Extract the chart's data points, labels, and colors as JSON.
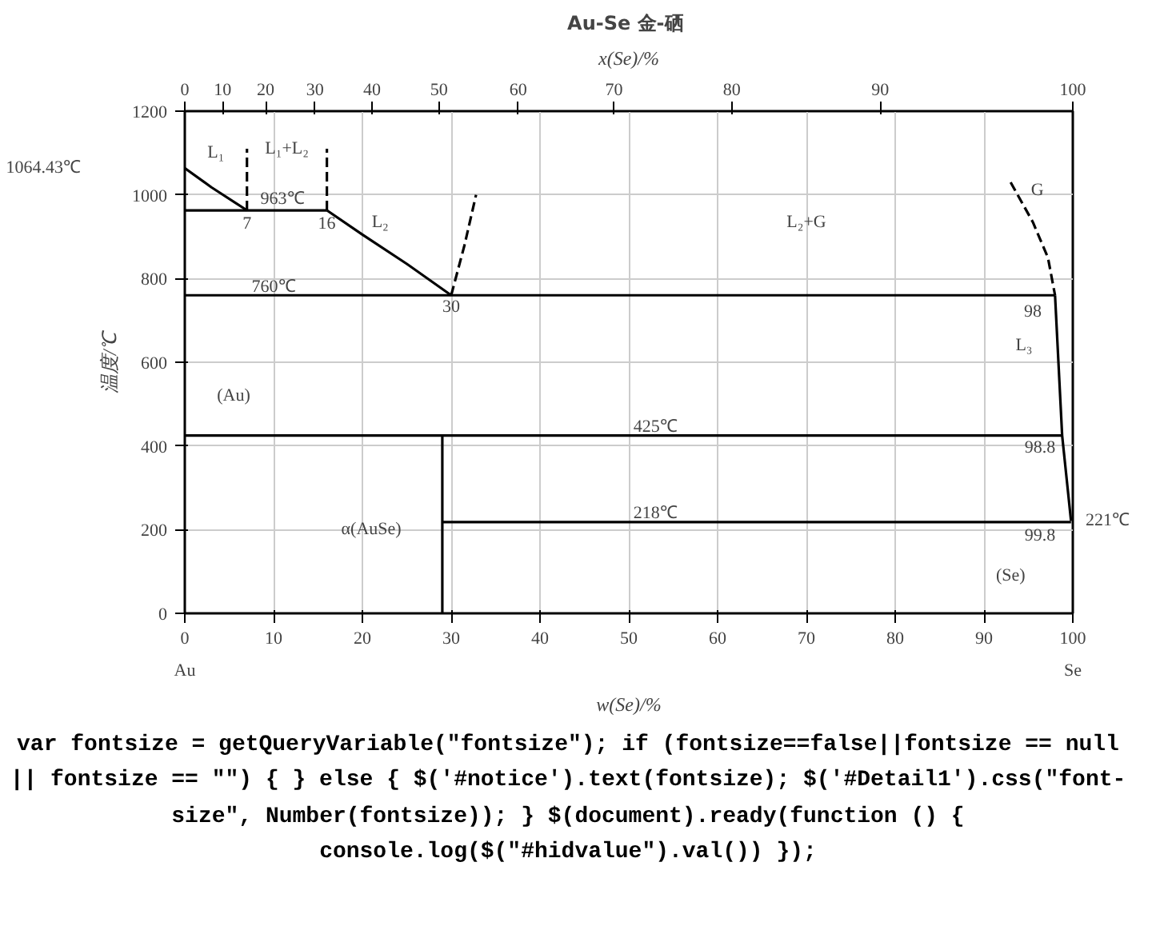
{
  "chart_data": {
    "type": "line",
    "title": "Au-Se  金-硒",
    "xlabel": "w(Se)/%",
    "ylabel": "温度/℃",
    "xlim": [
      0,
      100
    ],
    "ylim": [
      0,
      1200
    ],
    "xticks": [
      0,
      10,
      20,
      30,
      40,
      50,
      60,
      70,
      80,
      90,
      100
    ],
    "yticks": [
      0,
      200,
      400,
      600,
      800,
      1000,
      1200
    ],
    "grid": true,
    "marker": "none",
    "series": [
      {
        "color": "#000000",
        "line_style": "solid",
        "x": [
          0,
          3,
          7
        ],
        "values": [
          1064,
          1018,
          963
        ]
      },
      {
        "color": "#000000",
        "line_style": "solid",
        "x": [
          0,
          16
        ],
        "values": [
          963,
          963
        ]
      },
      {
        "color": "#000000",
        "line_style": "dashed",
        "x": [
          7,
          7
        ],
        "values": [
          963,
          1110
        ]
      },
      {
        "color": "#000000",
        "line_style": "dashed",
        "x": [
          16,
          16
        ],
        "values": [
          963,
          1110
        ]
      },
      {
        "color": "#000000",
        "line_style": "solid",
        "x": [
          16,
          20,
          25,
          30
        ],
        "values": [
          963,
          905,
          835,
          760
        ]
      },
      {
        "color": "#000000",
        "line_style": "dashed",
        "x": [
          30,
          31.5,
          32.8
        ],
        "values": [
          760,
          880,
          1000
        ]
      },
      {
        "color": "#000000",
        "line_style": "solid",
        "x": [
          0,
          98
        ],
        "values": [
          760,
          760
        ]
      },
      {
        "color": "#000000",
        "line_style": "dashed",
        "x": [
          93,
          95.5,
          97.2,
          98
        ],
        "values": [
          1030,
          935,
          850,
          760
        ]
      },
      {
        "color": "#000000",
        "line_style": "solid",
        "x": [
          98,
          98.8,
          99.8
        ],
        "values": [
          760,
          425,
          221
        ]
      },
      {
        "color": "#000000",
        "line_style": "solid",
        "x": [
          0,
          98.8
        ],
        "values": [
          425,
          425
        ]
      },
      {
        "color": "#000000",
        "line_style": "solid",
        "x": [
          29,
          29
        ],
        "values": [
          0,
          425
        ]
      },
      {
        "color": "#000000",
        "line_style": "solid",
        "x": [
          29,
          99.8
        ],
        "values": [
          218,
          218
        ]
      }
    ],
    "annotations": [
      "L₁",
      "L₁+L₂",
      "963℃",
      "7",
      "16",
      "L₂",
      "L₂+G",
      "G",
      "760℃",
      "30",
      "98",
      "L₃",
      "(Au)",
      "425℃",
      "98.8",
      "218℃",
      "99.8",
      "α(AuSe)",
      "(Se)",
      "1064.43℃",
      "221℃",
      "Au",
      "Se",
      "0",
      "10",
      "20",
      "30",
      "40",
      "50",
      "60",
      "70",
      "80",
      "90",
      "100",
      "x(Se)/%",
      "var fontsize = getQueryVariable(\"fontsize\"); if (fontsize==false||fontsize == null || fontsize == \"\") { } else { $('#notice').text(fontsize); $('#Detail1').css(\"font-size\", Number(fontsize)); } $(document).ready(function () { console.log($(\"#hidvalue\").val()) });"
    ]
  }
}
